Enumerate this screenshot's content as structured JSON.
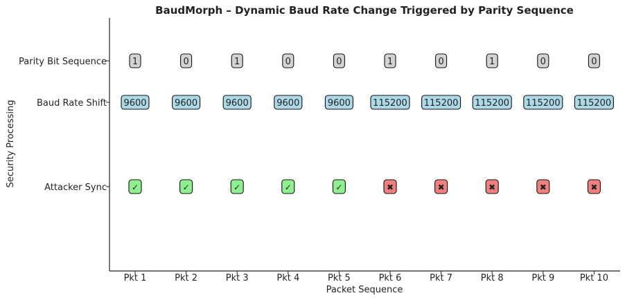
{
  "chart_data": {
    "type": "table",
    "title": "BaudMorph – Dynamic Baud Rate Change Triggered by Parity Sequence",
    "xlabel": "Packet Sequence",
    "ylabel": "Security Processing",
    "categories": [
      "Pkt 1",
      "Pkt 2",
      "Pkt 3",
      "Pkt 4",
      "Pkt 5",
      "Pkt 6",
      "Pkt 7",
      "Pkt 8",
      "Pkt 9",
      "Pkt 10"
    ],
    "rows": [
      {
        "label": "Parity Bit Sequence",
        "values": [
          "1",
          "0",
          "1",
          "0",
          "0",
          "1",
          "0",
          "1",
          "0",
          "0"
        ],
        "color": "#d3d3d3"
      },
      {
        "label": "Baud Rate Shift",
        "values": [
          "9600",
          "9600",
          "9600",
          "9600",
          "9600",
          "115200",
          "115200",
          "115200",
          "115200",
          "115200"
        ],
        "color": "#add8e6"
      },
      {
        "label": "Attacker Sync",
        "values": [
          "✓",
          "✓",
          "✓",
          "✓",
          "✓",
          "✖",
          "✖",
          "✖",
          "✖",
          "✖"
        ],
        "colors": [
          "#90ee90",
          "#90ee90",
          "#90ee90",
          "#90ee90",
          "#90ee90",
          "#f08080",
          "#f08080",
          "#f08080",
          "#f08080",
          "#f08080"
        ]
      }
    ]
  }
}
